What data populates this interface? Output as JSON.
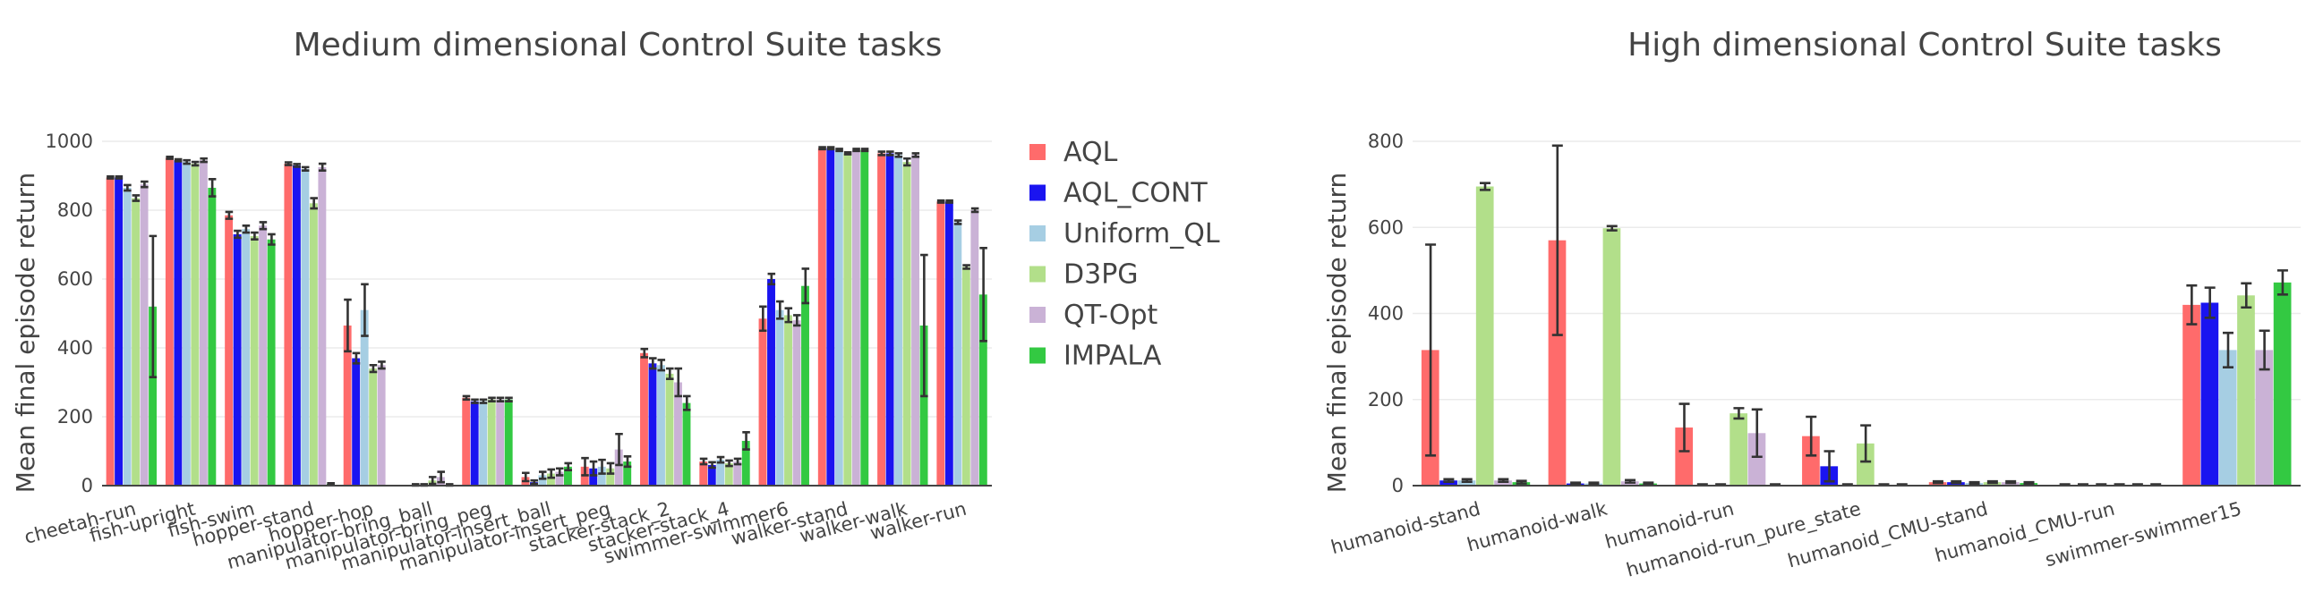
{
  "chart_data": [
    {
      "type": "bar",
      "title": "Medium dimensional Control Suite tasks",
      "ylabel": "Mean final episode return",
      "xlabel": "",
      "ylim": [
        0,
        1000
      ],
      "yticks": [
        0,
        200,
        400,
        600,
        800,
        1000
      ],
      "grid": true,
      "legend_position": "right",
      "categories": [
        "cheetah-run",
        "fish-upright",
        "fish-swim",
        "hopper-stand",
        "hopper-hop",
        "manipulator-bring_ball",
        "manipulator-bring_peg",
        "manipulator-insert_ball",
        "manipulator-insert_peg",
        "stacker-stack_2",
        "stacker-stack_4",
        "swimmer-swimmer6",
        "walker-stand",
        "walker-walk",
        "walker-run"
      ],
      "series": [
        {
          "name": "AQL",
          "values": [
            895,
            952,
            785,
            935,
            465,
            0,
            255,
            25,
            55,
            385,
            70,
            485,
            980,
            965,
            825
          ],
          "errors": [
            3,
            3,
            10,
            4,
            75,
            0,
            5,
            12,
            25,
            12,
            8,
            35,
            3,
            5,
            3
          ]
        },
        {
          "name": "AQL_CONT",
          "values": [
            895,
            945,
            730,
            930,
            370,
            2,
            245,
            10,
            50,
            355,
            60,
            600,
            980,
            965,
            825
          ],
          "errors": [
            3,
            3,
            10,
            4,
            15,
            2,
            5,
            5,
            20,
            15,
            8,
            15,
            3,
            5,
            3
          ]
        },
        {
          "name": "Uniform_QL",
          "values": [
            865,
            940,
            745,
            920,
            510,
            2,
            245,
            30,
            55,
            350,
            75,
            510,
            975,
            960,
            765
          ],
          "errors": [
            8,
            5,
            10,
            5,
            75,
            2,
            5,
            10,
            20,
            15,
            8,
            25,
            3,
            5,
            5
          ]
        },
        {
          "name": "D3PG",
          "values": [
            835,
            935,
            725,
            820,
            340,
            15,
            250,
            35,
            50,
            325,
            65,
            495,
            965,
            940,
            635
          ],
          "errors": [
            8,
            5,
            10,
            15,
            10,
            10,
            5,
            12,
            15,
            15,
            8,
            20,
            3,
            10,
            5
          ]
        },
        {
          "name": "QT-Opt",
          "values": [
            875,
            945,
            755,
            925,
            350,
            25,
            250,
            40,
            105,
            300,
            70,
            480,
            975,
            960,
            800
          ],
          "errors": [
            8,
            5,
            10,
            10,
            10,
            15,
            5,
            10,
            45,
            40,
            8,
            15,
            3,
            5,
            5
          ]
        },
        {
          "name": "IMPALA",
          "values": [
            520,
            865,
            715,
            5,
            0,
            2,
            250,
            55,
            70,
            240,
            130,
            580,
            975,
            465,
            555
          ],
          "errors": [
            205,
            25,
            15,
            2,
            0,
            2,
            5,
            10,
            15,
            20,
            25,
            50,
            3,
            205,
            135
          ]
        }
      ]
    },
    {
      "type": "bar",
      "title": "High dimensional Control Suite tasks",
      "ylabel": "Mean final episode return",
      "xlabel": "",
      "ylim": [
        0,
        800
      ],
      "yticks": [
        0,
        200,
        400,
        600,
        800
      ],
      "grid": true,
      "categories": [
        "humanoid-stand",
        "humanoid-walk",
        "humanoid-run",
        "humanoid-run_pure_state",
        "humanoid_CMU-stand",
        "humanoid_CMU-run",
        "swimmer-swimmer15"
      ],
      "series": [
        {
          "name": "AQL",
          "values": [
            315,
            570,
            135,
            115,
            8,
            2,
            420
          ],
          "errors": [
            245,
            220,
            55,
            45,
            2,
            1,
            45
          ]
        },
        {
          "name": "AQL_CONT",
          "values": [
            12,
            5,
            2,
            45,
            8,
            2,
            425
          ],
          "errors": [
            3,
            2,
            1,
            35,
            2,
            1,
            35
          ]
        },
        {
          "name": "Uniform_QL",
          "values": [
            12,
            5,
            2,
            2,
            6,
            2,
            315
          ],
          "errors": [
            3,
            2,
            1,
            1,
            2,
            1,
            40
          ]
        },
        {
          "name": "D3PG",
          "values": [
            695,
            598,
            168,
            98,
            8,
            2,
            442
          ],
          "errors": [
            8,
            5,
            12,
            42,
            2,
            1,
            28
          ]
        },
        {
          "name": "QT-Opt",
          "values": [
            12,
            10,
            122,
            2,
            8,
            2,
            315
          ],
          "errors": [
            3,
            3,
            55,
            1,
            2,
            1,
            45
          ]
        },
        {
          "name": "IMPALA",
          "values": [
            8,
            5,
            2,
            2,
            6,
            2,
            472
          ],
          "errors": [
            3,
            2,
            1,
            1,
            2,
            1,
            28
          ]
        }
      ]
    }
  ],
  "legend": {
    "items": [
      "AQL",
      "AQL_CONT",
      "Uniform_QL",
      "D3PG",
      "QT-Opt",
      "IMPALA"
    ]
  },
  "colors": {
    "AQL": "#ff6b6b",
    "AQL_CONT": "#1a14f0",
    "Uniform_QL": "#a6cee3",
    "D3PG": "#b2df8a",
    "QT-Opt": "#cab2d6",
    "IMPALA": "#33c942"
  }
}
